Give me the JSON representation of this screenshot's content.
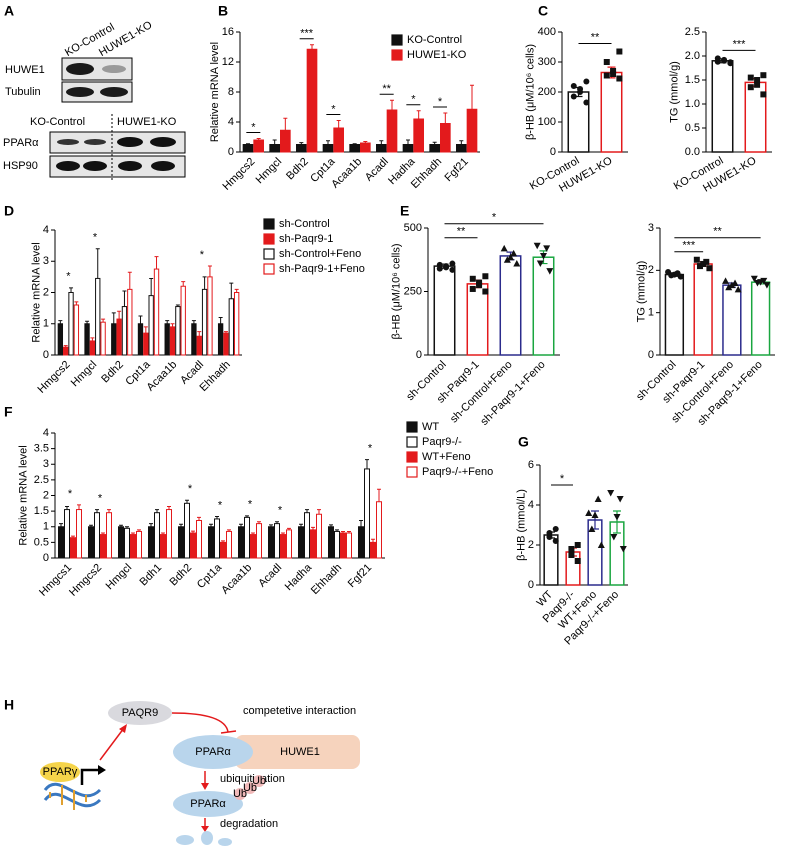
{
  "blot": {
    "panel": "A",
    "top_lanes": [
      "KO-Control",
      "HUWE1-KO"
    ],
    "top_rows": [
      "HUWE1",
      "Tubulin"
    ],
    "bottom_lanes": [
      "KO-Control",
      "HUWE1-KO"
    ],
    "bottom_rows": [
      "PPARα",
      "HSP90"
    ]
  },
  "chart_data": [
    {
      "type": "bar",
      "panel": "B",
      "ylabel": "Relative mRNA level",
      "legend": "upper right",
      "categories": [
        "Hmgcs2",
        "Hmgcl",
        "Bdh2",
        "Cpt1a",
        "Acaa1b",
        "Acadl",
        "Hadha",
        "Ehhadh",
        "Fgf21"
      ],
      "series": [
        {
          "name": "KO-Control",
          "color": "#111111",
          "fill": "#111111",
          "values": [
            1,
            1,
            1,
            1,
            1,
            1,
            1,
            1,
            1
          ],
          "errors": [
            0.1,
            0.6,
            0.25,
            0.5,
            0.1,
            0.5,
            0.6,
            0.3,
            0.5
          ]
        },
        {
          "name": "HUWE1-KO",
          "color": "#e31a1c",
          "fill": "#e31a1c",
          "values": [
            1.6,
            2.9,
            13.7,
            3.2,
            1.2,
            5.6,
            4.4,
            3.8,
            5.7
          ],
          "errors": [
            0.2,
            1.6,
            0.6,
            1.0,
            0.2,
            1.3,
            1.1,
            1.4,
            3.2
          ]
        }
      ],
      "significance": [
        "*",
        null,
        "***",
        "*",
        null,
        "**",
        "*",
        "*",
        null
      ],
      "ylim": [
        0,
        16
      ],
      "yticks": [
        0,
        4,
        8,
        12,
        16
      ]
    },
    {
      "type": "dotbar",
      "panel": "C",
      "ylabel": "β-HB (μM/10⁶ cells)",
      "categories": [
        "KO-Control",
        "HUWE1-KO"
      ],
      "colors": [
        "#111111",
        "#e31a1c"
      ],
      "markers": [
        "circle",
        "square"
      ],
      "values": [
        200,
        265
      ],
      "errors": [
        15,
        18
      ],
      "points": [
        [
          165,
          185,
          200,
          210,
          220,
          235
        ],
        [
          245,
          255,
          260,
          270,
          300,
          335
        ]
      ],
      "significance": [
        null,
        "**"
      ],
      "ylim": [
        0,
        400
      ],
      "yticks": [
        0,
        100,
        200,
        300,
        400
      ]
    },
    {
      "type": "dotbar",
      "ylabel": "TG (mmol/g)",
      "categories": [
        "KO-Control",
        "HUWE1-KO"
      ],
      "colors": [
        "#111111",
        "#e31a1c"
      ],
      "markers": [
        "circle",
        "square"
      ],
      "values": [
        1.9,
        1.45
      ],
      "errors": [
        0.04,
        0.08
      ],
      "points": [
        [
          1.85,
          1.88,
          1.9,
          1.92,
          1.95,
          1.87
        ],
        [
          1.2,
          1.35,
          1.4,
          1.5,
          1.55,
          1.6
        ]
      ],
      "significance": [
        null,
        "***"
      ],
      "ylim": [
        0,
        2.5
      ],
      "yticks": [
        {
          "value": 0,
          "label": "0.0"
        },
        0.5,
        {
          "value": 1,
          "label": "1.0"
        },
        1.5,
        {
          "value": 2,
          "label": "2.0"
        },
        2.5
      ]
    },
    {
      "type": "bar",
      "panel": "D",
      "ylabel": "Relative mRNA level",
      "legend": "right",
      "categories": [
        "Hmgcs2",
        "Hmgcl",
        "Bdh2",
        "Cpt1a",
        "Acaa1b",
        "Acadl",
        "Ehhadh"
      ],
      "series": [
        {
          "name": "sh-Control",
          "color": "#111111",
          "fill": "#111111",
          "values": [
            1,
            1,
            1,
            1,
            1,
            1,
            1
          ],
          "errors": [
            0.1,
            0.08,
            0.35,
            0.25,
            0.1,
            0.1,
            0.2
          ]
        },
        {
          "name": "sh-Paqr9-1",
          "color": "#e31a1c",
          "fill": "#e31a1c",
          "values": [
            0.25,
            0.45,
            1.15,
            0.7,
            0.9,
            0.6,
            0.7
          ],
          "errors": [
            0.05,
            0.1,
            0.25,
            0.2,
            0.1,
            0.15,
            0.05
          ]
        },
        {
          "name": "sh-Control+Feno",
          "color": "#111111",
          "fill": "#ffffff",
          "values": [
            2.0,
            2.45,
            1.55,
            1.9,
            1.55,
            2.1,
            1.8
          ],
          "errors": [
            0.15,
            0.95,
            0.5,
            0.55,
            0.05,
            0.4,
            0.5
          ]
        },
        {
          "name": "sh-Paqr9-1+Feno",
          "color": "#e31a1c",
          "fill": "#ffffff",
          "values": [
            1.6,
            1.05,
            2.1,
            2.75,
            2.2,
            2.5,
            2.0
          ],
          "errors": [
            0.1,
            0.1,
            0.55,
            0.4,
            0.15,
            0.35,
            0.1
          ]
        }
      ],
      "significance": [
        "*",
        "*",
        null,
        null,
        null,
        "*",
        null
      ],
      "ylim": [
        0,
        4
      ],
      "yticks": [
        0,
        1,
        2,
        3,
        4
      ]
    },
    {
      "type": "dotbar",
      "panel": "E",
      "ylabel": "β-HB (μM/10⁶ cells)",
      "categories": [
        "sh-Control",
        "sh-Paqr9-1",
        "sh-Control+Feno",
        "sh-Paqr9-1+Feno"
      ],
      "colors": [
        "#111111",
        "#e31a1c",
        "#2b2b8c",
        "#1aa640"
      ],
      "markers": [
        "circle",
        "square",
        "triangle",
        "triangle-down"
      ],
      "values": [
        350,
        280,
        390,
        385
      ],
      "errors": [
        8,
        15,
        15,
        25
      ],
      "points": [
        [
          335,
          340,
          345,
          350,
          355,
          360
        ],
        [
          250,
          260,
          275,
          285,
          300,
          310
        ],
        [
          360,
          375,
          385,
          400,
          420
        ],
        [
          330,
          360,
          390,
          420,
          430
        ]
      ],
      "significance": [
        null,
        "**",
        null,
        "*"
      ],
      "ylim": [
        0,
        500
      ],
      "yticks": [
        0,
        250,
        500
      ]
    },
    {
      "type": "dotbar",
      "ylabel": "TG (mmol/g)",
      "categories": [
        "sh-Control",
        "sh-Paqr9-1",
        "sh-Control+Feno",
        "sh-Paqr9-1+Feno"
      ],
      "colors": [
        "#111111",
        "#e31a1c",
        "#2b2b8c",
        "#1aa640"
      ],
      "markers": [
        "circle",
        "square",
        "triangle",
        "triangle-down"
      ],
      "values": [
        1.9,
        2.15,
        1.65,
        1.72
      ],
      "errors": [
        0.04,
        0.05,
        0.05,
        0.04
      ],
      "points": [
        [
          1.85,
          1.88,
          1.9,
          1.93,
          1.96
        ],
        [
          2.05,
          2.1,
          2.15,
          2.2,
          2.25
        ],
        [
          1.55,
          1.6,
          1.65,
          1.7,
          1.75
        ],
        [
          1.65,
          1.7,
          1.72,
          1.75,
          1.8
        ]
      ],
      "significance": [
        null,
        "***",
        null,
        "**"
      ],
      "ylim": [
        0,
        3
      ],
      "yticks": [
        0,
        1,
        2,
        3
      ]
    },
    {
      "type": "bar",
      "panel": "F",
      "ylabel": "Relative mRNA level",
      "legend": "right",
      "categories": [
        "Hmgcs1",
        "Hmgcs2",
        "Hmgcl",
        "Bdh1",
        "Bdh2",
        "Cpt1a",
        "Acaa1b",
        "Acadl",
        "Hadha",
        "Ehhadh",
        "Fgf21"
      ],
      "series": [
        {
          "name": "WT",
          "color": "#111111",
          "fill": "#111111",
          "values": [
            1,
            1,
            1,
            1,
            1,
            1,
            1,
            1,
            1,
            1,
            1
          ],
          "errors": [
            0.1,
            0.05,
            0.05,
            0.1,
            0.08,
            0.08,
            0.08,
            0.06,
            0.08,
            0.06,
            0.2
          ]
        },
        {
          "name": "Paqr9-/-",
          "color": "#111111",
          "fill": "#ffffff",
          "values": [
            1.55,
            1.45,
            0.95,
            1.45,
            1.75,
            1.25,
            1.3,
            1.1,
            1.45,
            0.85,
            2.85
          ],
          "errors": [
            0.1,
            0.1,
            0.05,
            0.1,
            0.1,
            0.08,
            0.05,
            0.06,
            0.1,
            0.05,
            0.3
          ]
        },
        {
          "name": "WT+Feno",
          "color": "#e31a1c",
          "fill": "#e31a1c",
          "values": [
            0.65,
            0.75,
            0.75,
            0.75,
            0.8,
            0.5,
            0.75,
            0.75,
            0.9,
            0.8,
            0.5
          ],
          "errors": [
            0.05,
            0.05,
            0.05,
            0.05,
            0.06,
            0.05,
            0.05,
            0.05,
            0.08,
            0.05,
            0.1
          ]
        },
        {
          "name": "Paqr9-/-+Feno",
          "color": "#e31a1c",
          "fill": "#ffffff",
          "values": [
            1.55,
            1.45,
            0.85,
            1.55,
            1.2,
            0.85,
            1.1,
            0.9,
            1.4,
            0.8,
            1.8
          ],
          "errors": [
            0.15,
            0.1,
            0.05,
            0.1,
            0.1,
            0.05,
            0.06,
            0.05,
            0.15,
            0.05,
            0.4
          ]
        }
      ],
      "significance": [
        "*",
        "*",
        null,
        null,
        "*",
        "*",
        "*",
        "*",
        null,
        null,
        "*"
      ],
      "ylim": [
        0,
        4
      ],
      "yticks": [
        0,
        0.5,
        1,
        1.5,
        2,
        2.5,
        3,
        3.5,
        4
      ]
    },
    {
      "type": "dotbar",
      "panel": "G",
      "ylabel": "β-HB (mmol/L)",
      "categories": [
        "WT",
        "Paqr9-/-",
        "WT+Feno",
        "Paqr9-/-+Feno"
      ],
      "colors": [
        "#111111",
        "#e31a1c",
        "#2b2b8c",
        "#1aa640"
      ],
      "markers": [
        "circle",
        "square",
        "triangle",
        "triangle-down"
      ],
      "values": [
        2.5,
        1.65,
        3.25,
        3.15
      ],
      "errors": [
        0.15,
        0.2,
        0.45,
        0.55
      ],
      "points": [
        [
          2.2,
          2.4,
          2.6,
          2.8
        ],
        [
          1.2,
          1.5,
          1.8,
          2.0
        ],
        [
          2.0,
          2.8,
          3.5,
          4.3,
          3.6
        ],
        [
          1.8,
          2.4,
          3.4,
          4.3,
          4.6
        ]
      ],
      "significance": [
        null,
        "*",
        null,
        null
      ],
      "ylim": [
        0,
        6
      ],
      "yticks": [
        0,
        2,
        4,
        6
      ]
    }
  ],
  "diagram": {
    "panel": "H",
    "paqr9": "PAQR9",
    "interaction": "competetive interaction",
    "ppara": "PPARα",
    "huwe1": "HUWE1",
    "ubiquitination": "ubiquitination",
    "ppara_ub": "PPARα",
    "ub_tags": [
      "Ub",
      "Ub",
      "Ub"
    ],
    "degradation": "degradation",
    "pparg": "PPARγ"
  }
}
